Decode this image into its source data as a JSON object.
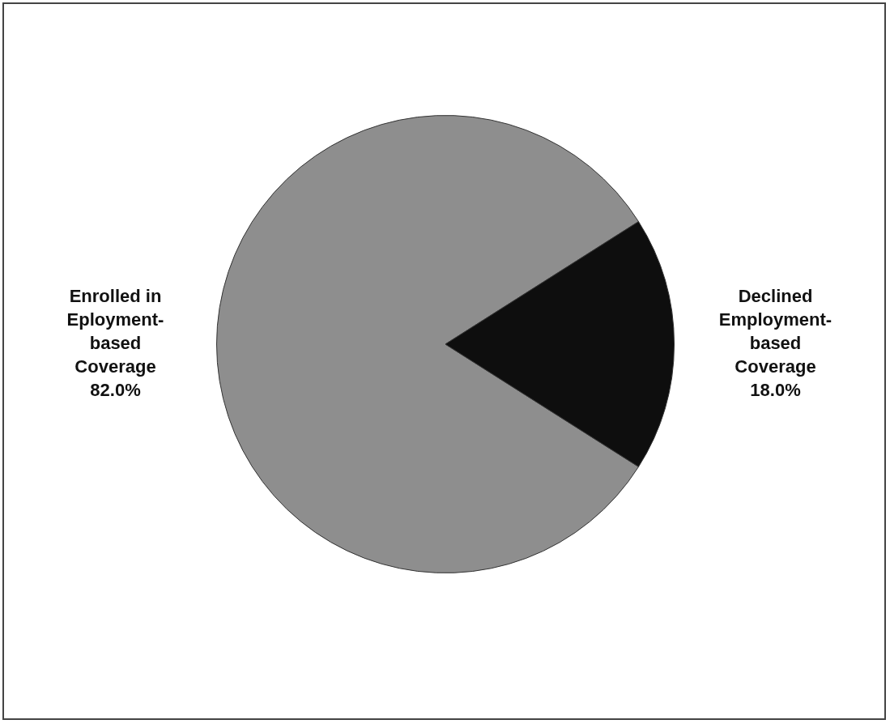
{
  "chart_data": {
    "type": "pie",
    "categories": [
      "Enrolled in Eployment-based Coverage",
      "Declined Employment-based Coverage"
    ],
    "values": [
      82,
      18
    ],
    "colors": [
      "#8e8e8e",
      "#0e0e0e"
    ],
    "value_labels": [
      "82.0%",
      "18.0%"
    ],
    "legend": false
  }
}
